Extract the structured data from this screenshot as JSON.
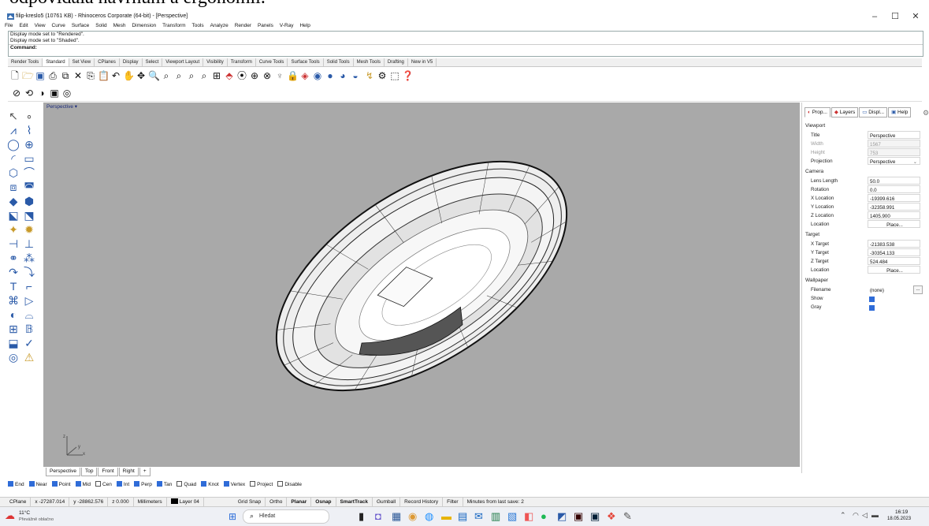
{
  "crop_text": "odpovídala navrhům a ergonomii.",
  "title": "filip-kreslo5 (10761 KB) - Rhinoceros Corporate (64-bit) - [Perspective]",
  "window_controls": [
    "–",
    "☐",
    "✕"
  ],
  "menu": [
    "File",
    "Edit",
    "View",
    "Curve",
    "Surface",
    "Solid",
    "Mesh",
    "Dimension",
    "Transform",
    "Tools",
    "Analyze",
    "Render",
    "Panels",
    "V-Ray",
    "Help"
  ],
  "command_history": [
    "Display mode set to \"Rendered\".",
    "Display mode set to \"Shaded\"."
  ],
  "command_prompt": "Command:",
  "toolbar_tabs": [
    "Render Tools",
    "Standard",
    "Set View",
    "CPlanes",
    "Display",
    "Select",
    "Viewport Layout",
    "Visibility",
    "Transform",
    "Curve Tools",
    "Surface Tools",
    "Solid Tools",
    "Mesh Tools",
    "Drafting",
    "New in V5"
  ],
  "active_toolbar_tab": "Standard",
  "viewport": {
    "label": "Perspective",
    "axis_y": "y",
    "axis_x": "x",
    "axis_z": "z"
  },
  "viewport_tabs": [
    "Perspective",
    "Top",
    "Front",
    "Right"
  ],
  "viewport_tab_add": "+",
  "osnap": [
    {
      "label": "End",
      "on": true
    },
    {
      "label": "Near",
      "on": true
    },
    {
      "label": "Point",
      "on": true
    },
    {
      "label": "Mid",
      "on": true
    },
    {
      "label": "Cen",
      "on": false
    },
    {
      "label": "Int",
      "on": true
    },
    {
      "label": "Perp",
      "on": true
    },
    {
      "label": "Tan",
      "on": true
    },
    {
      "label": "Quad",
      "on": false
    },
    {
      "label": "Knot",
      "on": true
    },
    {
      "label": "Vertex",
      "on": true
    },
    {
      "label": "Project",
      "on": false
    },
    {
      "label": "Disable",
      "on": false
    }
  ],
  "status": {
    "cplane": "CPlane",
    "x": "x -27287.014",
    "y": "y -28862.576",
    "z": "z 0.000",
    "units": "Millimeters",
    "layer": "Layer 04",
    "toggles": [
      {
        "label": "Grid Snap",
        "bold": false
      },
      {
        "label": "Ortho",
        "bold": false
      },
      {
        "label": "Planar",
        "bold": true
      },
      {
        "label": "Osnap",
        "bold": true
      },
      {
        "label": "SmartTrack",
        "bold": true
      },
      {
        "label": "Gumball",
        "bold": false
      },
      {
        "label": "Record History",
        "bold": false
      },
      {
        "label": "Filter",
        "bold": false
      }
    ],
    "save_info": "Minutes from last save: 2"
  },
  "panel": {
    "tabs": [
      "Prop...",
      "Layers",
      "Displ...",
      "Help"
    ],
    "sections": {
      "viewport": "Viewport",
      "camera": "Camera",
      "target": "Target",
      "wallpaper": "Wallpaper"
    },
    "viewport_rows": [
      {
        "k": "Title",
        "v": "Perspective",
        "grey": false
      },
      {
        "k": "Width",
        "v": "1567",
        "grey": true
      },
      {
        "k": "Height",
        "v": "753",
        "grey": true
      },
      {
        "k": "Projection",
        "v": "Perspective",
        "grey": false
      }
    ],
    "camera_rows": [
      {
        "k": "Lens Length",
        "v": "50.0"
      },
      {
        "k": "Rotation",
        "v": "0.0"
      },
      {
        "k": "X Location",
        "v": "-19399.616"
      },
      {
        "k": "Y Location",
        "v": "-32358.991"
      },
      {
        "k": "Z Location",
        "v": "1405.900"
      }
    ],
    "camera_location_label": "Location",
    "camera_place": "Place...",
    "target_rows": [
      {
        "k": "X Target",
        "v": "-21383.538"
      },
      {
        "k": "Y Target",
        "v": "-30354.133"
      },
      {
        "k": "Z Target",
        "v": "524.484"
      }
    ],
    "target_location_label": "Location",
    "target_place": "Place...",
    "wallpaper_filename_label": "Filename",
    "wallpaper_filename": "(none)",
    "wallpaper_browse": "...",
    "wallpaper_show_label": "Show",
    "wallpaper_gray_label": "Gray"
  },
  "taskbar": {
    "weather_temp": "11°C",
    "weather_desc": "Převážně oblačno",
    "search_placeholder": "Hledat",
    "time": "16:19",
    "date": "18.05.2023"
  },
  "colors": {
    "viewport_bg": "#a9a9a9",
    "accent": "#2f6cd8"
  }
}
